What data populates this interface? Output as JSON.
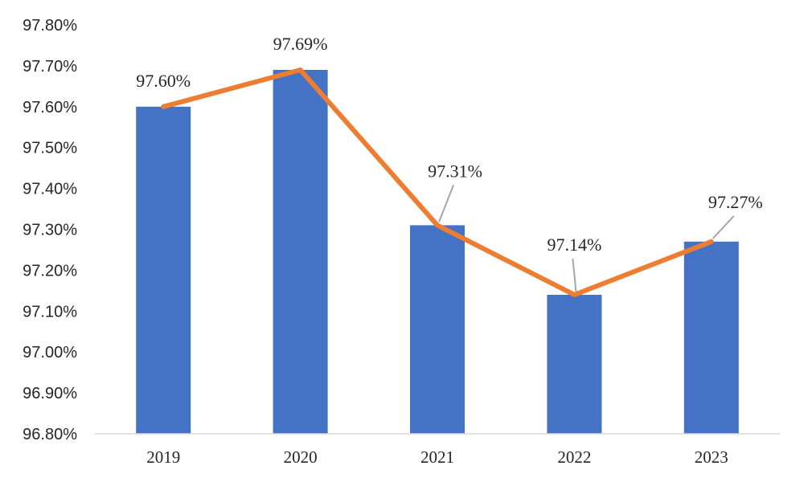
{
  "chart_data": {
    "type": "bar",
    "categories": [
      "2019",
      "2020",
      "2021",
      "2022",
      "2023"
    ],
    "series": [
      {
        "type": "bar",
        "values": [
          97.6,
          97.69,
          97.31,
          97.14,
          97.27
        ],
        "color": "#4472C4"
      },
      {
        "type": "line",
        "values": [
          97.6,
          97.69,
          97.31,
          97.14,
          97.27
        ],
        "color": "#ED7D31"
      }
    ],
    "data_labels": [
      "97.60%",
      "97.69%",
      "97.31%",
      "97.14%",
      "97.27%"
    ],
    "y_ticks": [
      "97.80%",
      "97.70%",
      "97.60%",
      "97.50%",
      "97.40%",
      "97.30%",
      "97.20%",
      "97.10%",
      "97.00%",
      "96.90%",
      "96.80%"
    ],
    "ylim": [
      96.8,
      97.8
    ],
    "title": "",
    "xlabel": "",
    "ylabel": "",
    "grid": false,
    "legend": "none"
  }
}
